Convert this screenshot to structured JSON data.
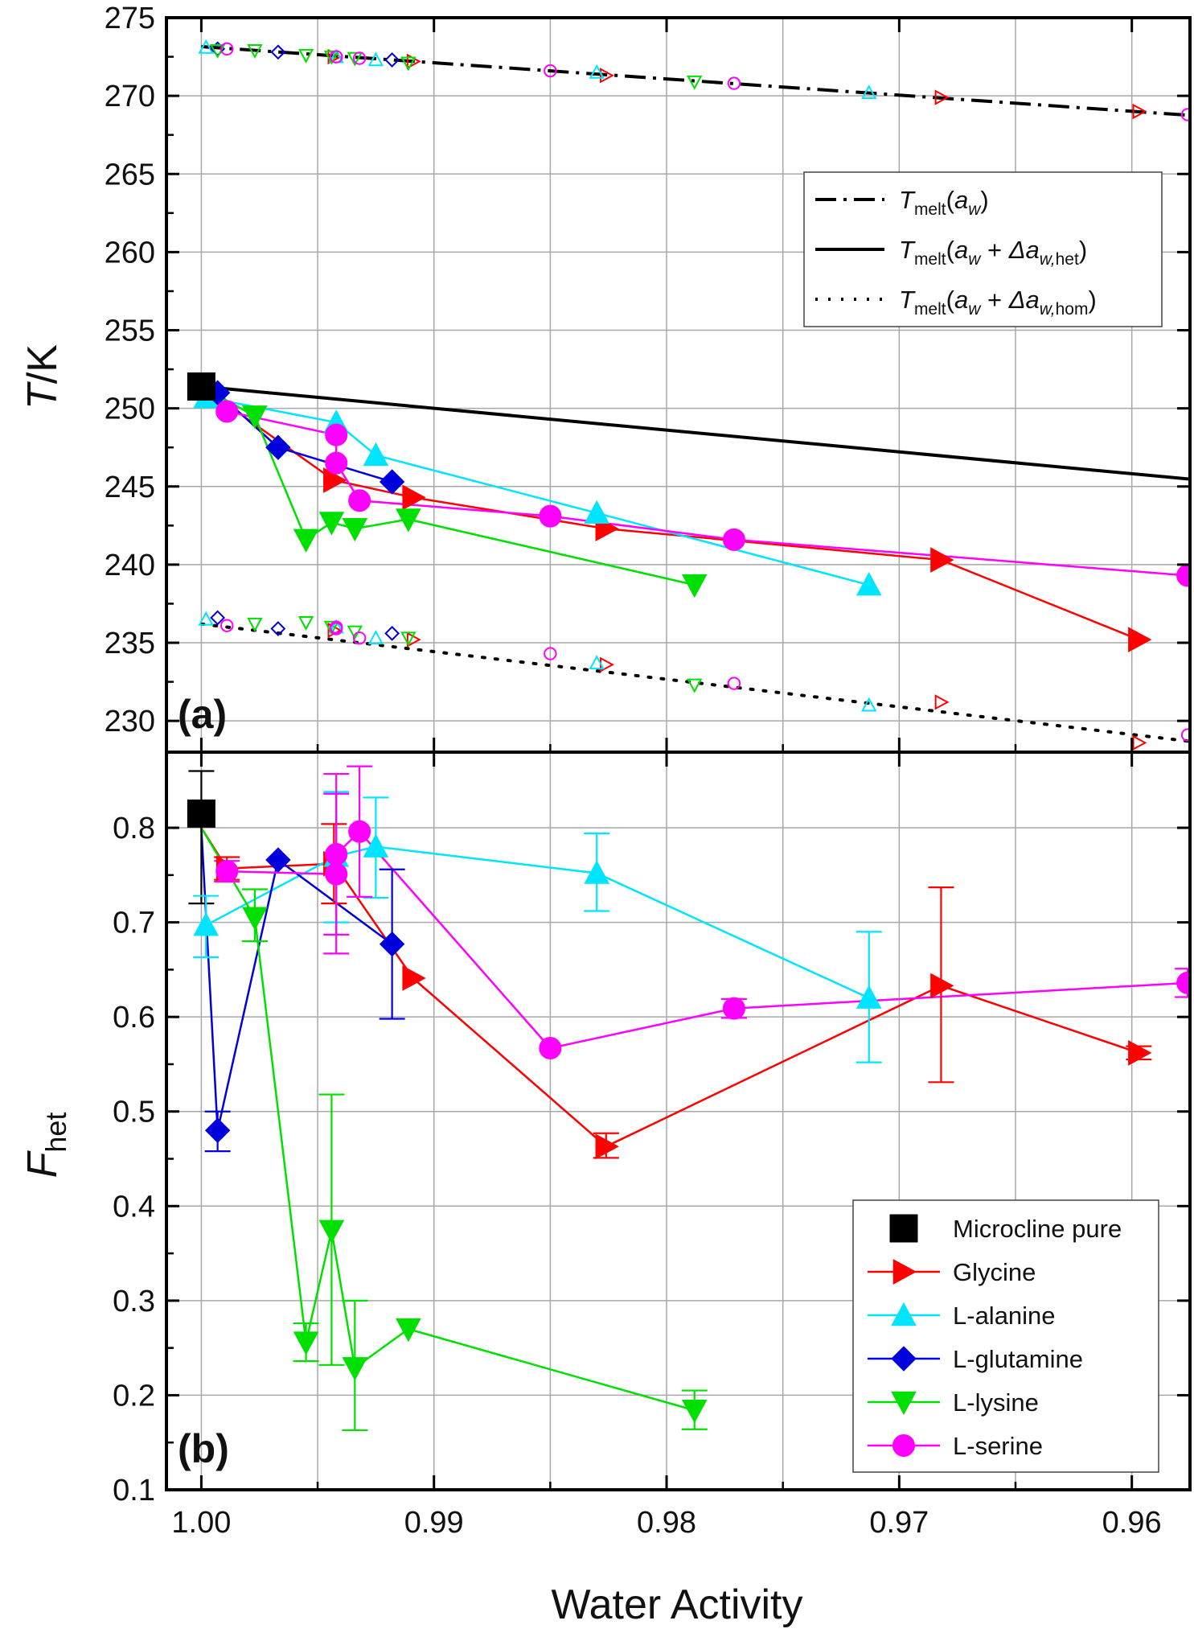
{
  "chart_data": {
    "type": "scatter",
    "xlabel": "Water Activity",
    "x_range": [
      1.0015,
      0.9575
    ],
    "x_ticks": [
      1.0,
      0.99,
      0.98,
      0.97,
      0.96
    ],
    "x_tick_labels": [
      "1.00",
      "0.99",
      "0.98",
      "0.97",
      "0.96"
    ],
    "colors": {
      "microcline": "#000000",
      "glycine": "#ff0000",
      "alanine": "#00e5ff",
      "glutamine": "#0000dd",
      "lysine": "#00e000",
      "serine": "#ff00ff"
    },
    "panels": [
      {
        "id": "a",
        "panel_label": "(a)",
        "ylabel_main": "T",
        "ylabel_rest": "/K",
        "y_range": [
          228,
          275
        ],
        "y_ticks": [
          230,
          235,
          240,
          245,
          250,
          255,
          260,
          265,
          270,
          275
        ],
        "grid": true,
        "curves": [
          {
            "name": "melt",
            "style": "dashdot",
            "x": [
              1.0,
              0.957
            ],
            "y": [
              273.15,
              268.7
            ]
          },
          {
            "name": "het",
            "style": "solid",
            "x": [
              1.0,
              0.957
            ],
            "y": [
              251.4,
              245.4
            ]
          },
          {
            "name": "hom",
            "style": "dotted",
            "x": [
              1.0,
              0.957
            ],
            "y": [
              236.2,
              228.6
            ]
          }
        ],
        "series": [
          {
            "key": "microcline",
            "marker": "square",
            "x": [
              1.0
            ],
            "y": [
              251.4
            ]
          },
          {
            "key": "glycine",
            "marker": "tri-right",
            "x": [
              0.9943,
              0.9909,
              0.9826,
              0.9682,
              0.9597
            ],
            "y": [
              245.4,
              244.3,
              242.3,
              240.3,
              235.2
            ],
            "melt_y": [
              272.5,
              272.2,
              271.3,
              269.9,
              269.0
            ],
            "hom_y": [
              235.8,
              235.2,
              233.6,
              231.2,
              228.6
            ]
          },
          {
            "key": "alanine",
            "marker": "tri-up",
            "x": [
              0.9998,
              0.9942,
              0.9925,
              0.983,
              0.9713
            ],
            "y": [
              250.7,
              249.1,
              247.0,
              243.3,
              238.7
            ],
            "melt_y": [
              273.1,
              272.5,
              272.3,
              271.5,
              270.2
            ],
            "hom_y": [
              236.5,
              236.0,
              235.3,
              233.7,
              231.0
            ]
          },
          {
            "key": "glutamine",
            "marker": "diamond",
            "x": [
              0.9993,
              0.9967,
              0.9918
            ],
            "y": [
              251.0,
              247.5,
              245.3
            ],
            "melt_y": [
              273.0,
              272.8,
              272.3
            ],
            "hom_y": [
              236.6,
              235.9,
              235.6
            ]
          },
          {
            "key": "lysine",
            "marker": "tri-down",
            "x": [
              0.9977,
              0.9955,
              0.9944,
              0.9934,
              0.9911,
              0.9788
            ],
            "y": [
              249.5,
              241.6,
              242.7,
              242.3,
              242.9,
              238.7
            ],
            "melt_y": [
              272.9,
              272.6,
              272.5,
              272.4,
              272.1,
              270.9
            ],
            "hom_y": [
              236.2,
              236.3,
              236.0,
              235.7,
              235.3,
              232.3
            ],
            "melt_extra": {
              "x": [
                0.9993
              ],
              "y": [
                272.9
              ]
            }
          },
          {
            "key": "serine",
            "marker": "circle",
            "x": [
              0.9989,
              0.9942,
              0.9942,
              0.9932,
              0.985,
              0.9771,
              0.9576
            ],
            "y": [
              249.8,
              248.3,
              246.5,
              244.1,
              243.1,
              241.6,
              239.3
            ],
            "melt_y": [
              273.0,
              272.5,
              272.5,
              272.4,
              271.6,
              270.8,
              268.8
            ],
            "hom_y": [
              236.1,
              236.0,
              235.9,
              235.3,
              234.3,
              232.4,
              229.1
            ]
          }
        ],
        "legend": {
          "position": "top-right",
          "entries": [
            {
              "style": "dashdot",
              "main": "T",
              "sub": "melt",
              "open": "(a",
              "italic_after": "w",
              "rest": ")"
            },
            {
              "style": "solid",
              "main": "T",
              "sub": "melt",
              "open": "(a",
              "italic_after": "w",
              "plus": " + ",
              "delta": "Δa",
              "delta_sub": "w,",
              "delta_sub_tail": "het",
              "rest": ")"
            },
            {
              "style": "dotted",
              "main": "T",
              "sub": "melt",
              "open": "(a",
              "italic_after": "w",
              "plus": " + ",
              "delta": "Δa",
              "delta_sub": "w,",
              "delta_sub_tail": "hom",
              "rest": ")"
            }
          ]
        }
      },
      {
        "id": "b",
        "panel_label": "(b)",
        "ylabel_main": "F",
        "ylabel_sub": "het",
        "y_range": [
          0.1,
          0.88
        ],
        "y_ticks": [
          0.1,
          0.2,
          0.3,
          0.4,
          0.5,
          0.6,
          0.7,
          0.8
        ],
        "y_tick_labels": [
          "0.1",
          "0.2",
          "0.3",
          "0.4",
          "0.5",
          "0.6",
          "0.7",
          "0.8"
        ],
        "grid": true,
        "series": [
          {
            "key": "microcline",
            "marker": "square",
            "name": "Microcline pure",
            "x": [
              1.0
            ],
            "y": [
              0.815
            ],
            "err": [
              [
                0.72,
                0.86
              ]
            ]
          },
          {
            "key": "glycine",
            "marker": "tri-right",
            "name": "Glycine",
            "x": [
              1.0,
              0.9989,
              0.9943,
              0.9909,
              0.9826,
              0.9682,
              0.9597
            ],
            "y": [
              0.8,
              0.757,
              0.762,
              0.641,
              0.463,
              0.633,
              0.562
            ],
            "err": [
              [
                0.8,
                0.8
              ],
              [
                0.745,
                0.769
              ],
              [
                0.72,
                0.804
              ],
              [
                0.641,
                0.641
              ],
              [
                0.451,
                0.477
              ],
              [
                0.531,
                0.737
              ],
              [
                0.555,
                0.569
              ]
            ]
          },
          {
            "key": "alanine",
            "marker": "tri-up",
            "name": "L-alanine",
            "x": [
              0.9998,
              0.9942,
              0.9925,
              0.983,
              0.9713
            ],
            "y": [
              0.697,
              0.77,
              0.78,
              0.752,
              0.62
            ],
            "err": [
              [
                0.663,
                0.728
              ],
              [
                0.7,
                0.838
              ],
              [
                0.726,
                0.832
              ],
              [
                0.712,
                0.794
              ],
              [
                0.552,
                0.69
              ]
            ]
          },
          {
            "key": "glutamine",
            "marker": "diamond",
            "name": "L-glutamine",
            "x": [
              1.0,
              0.9993,
              0.9967,
              0.9918
            ],
            "y": [
              0.8,
              0.48,
              0.766,
              0.677
            ],
            "err": [
              [
                0.8,
                0.8
              ],
              [
                0.458,
                0.5
              ],
              [
                0.766,
                0.766
              ],
              [
                0.598,
                0.756
              ]
            ]
          },
          {
            "key": "lysine",
            "marker": "tri-down",
            "name": "L-lysine",
            "x": [
              1.0,
              0.9977,
              0.9955,
              0.9944,
              0.9934,
              0.9911,
              0.9788
            ],
            "y": [
              0.8,
              0.705,
              0.256,
              0.374,
              0.229,
              0.27,
              0.184
            ],
            "err": [
              [
                0.8,
                0.8
              ],
              [
                0.68,
                0.735
              ],
              [
                0.236,
                0.276
              ],
              [
                0.232,
                0.518
              ],
              [
                0.163,
                0.3
              ],
              [
                0.27,
                0.27
              ],
              [
                0.164,
                0.205
              ]
            ]
          },
          {
            "key": "serine",
            "marker": "circle",
            "name": "L-serine",
            "x": [
              0.9989,
              0.9942,
              0.9942,
              0.9932,
              0.985,
              0.9771,
              0.9576
            ],
            "y": [
              0.754,
              0.751,
              0.772,
              0.796,
              0.567,
              0.609,
              0.636
            ],
            "err": [
              [
                0.743,
                0.765
              ],
              [
                0.667,
                0.836
              ],
              [
                0.687,
                0.857
              ],
              [
                0.727,
                0.865
              ],
              [
                0.567,
                0.567
              ],
              [
                0.599,
                0.619
              ],
              [
                0.621,
                0.651
              ]
            ]
          }
        ],
        "legend": {
          "position": "bottom-right",
          "entries": [
            "Microcline pure",
            "Glycine",
            "L-alanine",
            "L-glutamine",
            "L-lysine",
            "L-serine"
          ]
        }
      }
    ]
  }
}
